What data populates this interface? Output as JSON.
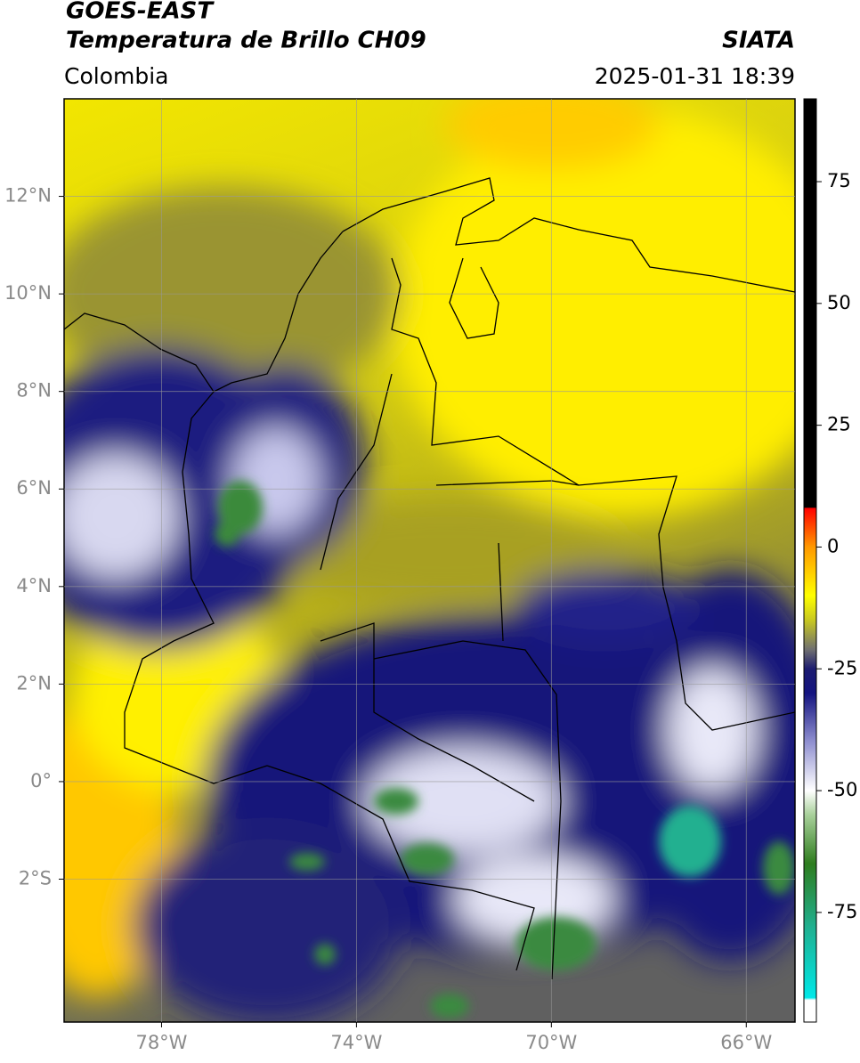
{
  "header": {
    "title": "GOES-EAST",
    "subtitle": "Temperatura de Brillo CH09",
    "source": "SIATA",
    "region": "Colombia",
    "datetime": "2025-01-31 18:39"
  },
  "map": {
    "xlim": [
      -80,
      -65
    ],
    "ylim": [
      -4.93,
      14
    ],
    "xticks": [
      {
        "value": -78,
        "label": "78°W"
      },
      {
        "value": -74,
        "label": "74°W"
      },
      {
        "value": -70,
        "label": "70°W"
      },
      {
        "value": -66,
        "label": "66°W"
      }
    ],
    "yticks": [
      {
        "value": 12,
        "label": "12°N"
      },
      {
        "value": 10,
        "label": "10°N"
      },
      {
        "value": 8,
        "label": "8°N"
      },
      {
        "value": 6,
        "label": "6°N"
      },
      {
        "value": 4,
        "label": "4°N"
      },
      {
        "value": 2,
        "label": "2°N"
      },
      {
        "value": 0,
        "label": "0°"
      },
      {
        "value": -2,
        "label": "2°S"
      }
    ],
    "grid": true
  },
  "colorbar": {
    "lim": [
      -97.5,
      92
    ],
    "ticks": [
      75,
      50,
      25,
      0,
      -25,
      -50,
      -75
    ],
    "stops": [
      {
        "value": -97.5,
        "color": "#ffffff"
      },
      {
        "value": -93,
        "color": "#ffffff"
      },
      {
        "value": -92.5,
        "color": "#00e8e8"
      },
      {
        "value": -78,
        "color": "#20b090"
      },
      {
        "value": -65,
        "color": "#2e7d1e"
      },
      {
        "value": -55,
        "color": "#a8d09a"
      },
      {
        "value": -50,
        "color": "#ffffff"
      },
      {
        "value": -40,
        "color": "#9090d0"
      },
      {
        "value": -30,
        "color": "#141480"
      },
      {
        "value": -25,
        "color": "#1c1c70"
      },
      {
        "value": -21,
        "color": "#707070"
      },
      {
        "value": -15,
        "color": "#c8c820"
      },
      {
        "value": -10,
        "color": "#ffff00"
      },
      {
        "value": 0,
        "color": "#ff9900"
      },
      {
        "value": 8,
        "color": "#ff0000"
      },
      {
        "value": 8.1,
        "color": "#000000"
      },
      {
        "value": 92,
        "color": "#000000"
      }
    ]
  }
}
